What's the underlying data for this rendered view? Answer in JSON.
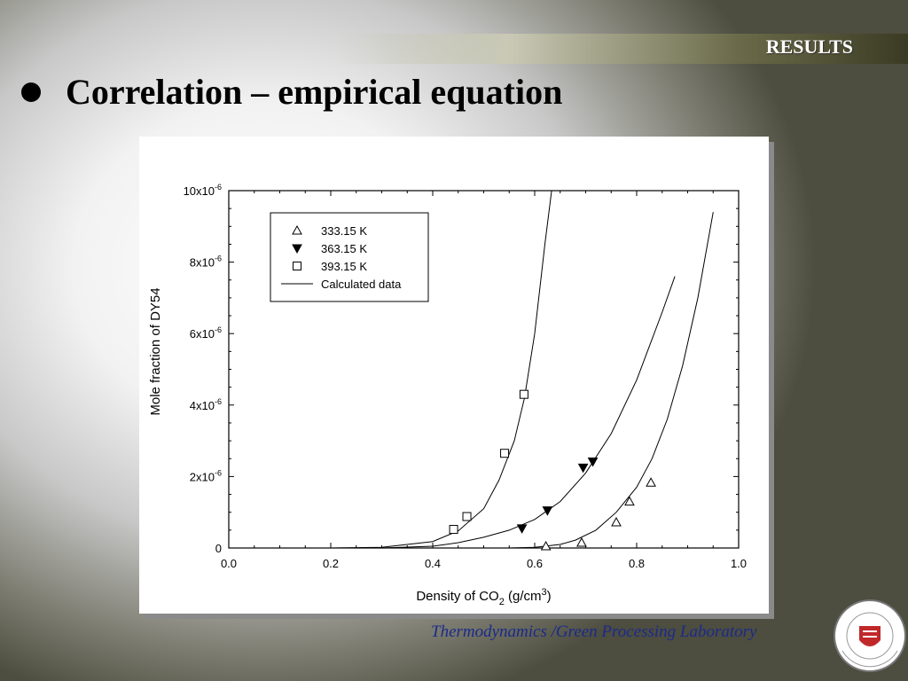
{
  "header": {
    "section_label": "RESULTS",
    "title": "Correlation – empirical equation"
  },
  "footer": {
    "lab_name": "Thermodynamics /Green Processing Laboratory",
    "seal_text": "Sogang University"
  },
  "colors": {
    "footer_text": "#1a2a8a",
    "seal_red": "#c0282a"
  },
  "chart_data": {
    "type": "scatter",
    "xlabel_main": "Density of CO",
    "xlabel_sub": "2",
    "xlabel_unit": " (g/cm",
    "xlabel_sup": "3",
    "xlabel_end": ")",
    "ylabel": "Mole fraction of DY54",
    "xlim": [
      0.0,
      1.0
    ],
    "ylim": [
      0,
      1e-05
    ],
    "x_ticks": [
      "0.0",
      "0.2",
      "0.4",
      "0.6",
      "0.8",
      "1.0"
    ],
    "y_ticks": [
      {
        "value": 0,
        "base": "0",
        "exp": ""
      },
      {
        "value": 2e-06,
        "base": "2x10",
        "exp": "-6"
      },
      {
        "value": 4e-06,
        "base": "4x10",
        "exp": "-6"
      },
      {
        "value": 6e-06,
        "base": "6x10",
        "exp": "-6"
      },
      {
        "value": 8e-06,
        "base": "8x10",
        "exp": "-6"
      },
      {
        "value": 1e-05,
        "base": "10x10",
        "exp": "-6"
      }
    ],
    "legend_position": "top-left",
    "series": [
      {
        "name": "333.15 K",
        "marker": "open-triangle-up",
        "x": [
          0.622,
          0.692,
          0.76,
          0.786,
          0.828
        ],
        "y": [
          5e-08,
          1.5e-07,
          7.2e-07,
          1.3e-06,
          1.83e-06
        ]
      },
      {
        "name": "363.15 K",
        "marker": "filled-triangle-down",
        "x": [
          0.575,
          0.625,
          0.695,
          0.714
        ],
        "y": [
          5.5e-07,
          1.05e-06,
          2.25e-06,
          2.42e-06
        ]
      },
      {
        "name": "393.15 K",
        "marker": "open-square",
        "x": [
          0.441,
          0.467,
          0.541,
          0.579
        ],
        "y": [
          5.2e-07,
          8.8e-07,
          2.65e-06,
          4.3e-06
        ]
      }
    ],
    "calculated": {
      "name": "Calculated data",
      "curves": [
        {
          "x": [
            0.55,
            0.6,
            0.65,
            0.68,
            0.72,
            0.76,
            0.8,
            0.83,
            0.86,
            0.89,
            0.92,
            0.95
          ],
          "y": [
            0.0,
            2e-08,
            1e-07,
            2.2e-07,
            5e-07,
            1e-06,
            1.7e-06,
            2.5e-06,
            3.6e-06,
            5.1e-06,
            7e-06,
            9.4e-06
          ]
        },
        {
          "x": [
            0.3,
            0.4,
            0.45,
            0.5,
            0.55,
            0.6,
            0.65,
            0.7,
            0.75,
            0.8,
            0.85,
            0.875
          ],
          "y": [
            0.0,
            5e-08,
            1.5e-07,
            3e-07,
            5e-07,
            8e-07,
            1.3e-06,
            2.1e-06,
            3.2e-06,
            4.7e-06,
            6.6e-06,
            7.6e-06
          ]
        },
        {
          "x": [
            0.1,
            0.2,
            0.3,
            0.4,
            0.45,
            0.5,
            0.53,
            0.56,
            0.58,
            0.6,
            0.62,
            0.635
          ],
          "y": [
            0.0,
            0.0,
            2e-08,
            1.8e-07,
            4.8e-07,
            1.1e-06,
            1.9e-06,
            3e-06,
            4.2e-06,
            6e-06,
            8.5e-06,
            1.02e-05
          ]
        }
      ]
    }
  }
}
